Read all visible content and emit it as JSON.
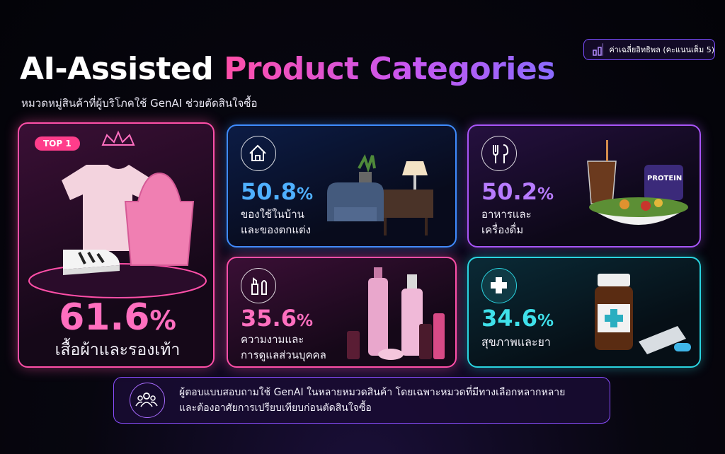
{
  "header": {
    "title_lead": "AI-Assisted",
    "title_highlight": "Product Categories",
    "subtitle": "หมวดหมู่สินค้าที่ผู้บริโภคใช้ GenAI ช่วยตัดสินใจซื้อ",
    "legend_note": "ค่าเฉลี่ยอิทธิพล (คะแนนเต็ม 5)"
  },
  "cards": [
    {
      "badge": "TOP 1",
      "value": 61.6,
      "unit": "%",
      "label": [
        "เสื้อผ้าและรองเท้า"
      ]
    },
    {
      "value": 50.8,
      "unit": "%",
      "label": [
        "ของใช้ในบ้าน",
        "และของตกแต่ง"
      ]
    },
    {
      "value": 50.2,
      "unit": "%",
      "label": [
        "อาหารและ",
        "เครื่องดื่ม"
      ]
    },
    {
      "value": 35.6,
      "unit": "%",
      "label": [
        "ความงามและ",
        "การดูแลส่วนบุคคล"
      ]
    },
    {
      "value": 34.6,
      "unit": "%",
      "label": [
        "สุขภาพและยา"
      ]
    }
  ],
  "footer": {
    "lines": [
      "ผู้ตอบแบบสอบถามใช้ GenAI ในหลายหมวดสินค้า โดยเฉพาะหมวดที่มีทางเลือกหลากหลาย",
      "และต้องอาศัยการเปรียบเทียบก่อนตัดสินใจซื้อ"
    ]
  }
}
